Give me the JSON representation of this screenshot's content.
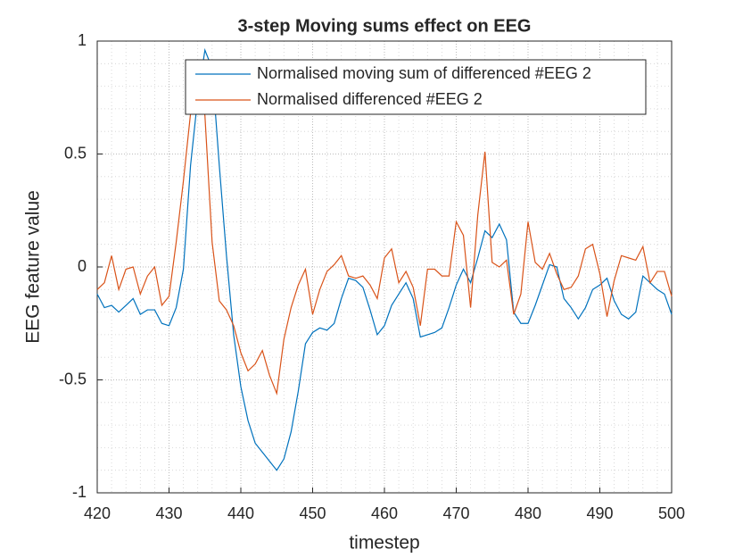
{
  "chart_data": {
    "type": "line",
    "title": "3-step Moving sums effect on EEG",
    "xlabel": "timestep",
    "ylabel": "EEG feature value",
    "x": [
      420,
      421,
      422,
      423,
      424,
      425,
      426,
      427,
      428,
      429,
      430,
      431,
      432,
      433,
      434,
      435,
      436,
      437,
      438,
      439,
      440,
      441,
      442,
      443,
      444,
      445,
      446,
      447,
      448,
      449,
      450,
      451,
      452,
      453,
      454,
      455,
      456,
      457,
      458,
      459,
      460,
      461,
      462,
      463,
      464,
      465,
      466,
      467,
      468,
      469,
      470,
      471,
      472,
      473,
      474,
      475,
      476,
      477,
      478,
      479,
      480,
      481,
      482,
      483,
      484,
      485,
      486,
      487,
      488,
      489,
      490,
      491,
      492,
      493,
      494,
      495,
      496,
      497,
      498,
      499,
      500
    ],
    "series": [
      {
        "name": "Normalised moving sum of differenced #EEG 2",
        "color": "#0072BD",
        "values": [
          -0.12,
          -0.18,
          -0.17,
          -0.2,
          -0.17,
          -0.14,
          -0.21,
          -0.19,
          -0.19,
          -0.25,
          -0.26,
          -0.18,
          -0.01,
          0.45,
          0.75,
          0.96,
          0.88,
          0.45,
          0.05,
          -0.3,
          -0.53,
          -0.68,
          -0.78,
          -0.82,
          -0.86,
          -0.9,
          -0.85,
          -0.73,
          -0.55,
          -0.34,
          -0.29,
          -0.27,
          -0.28,
          -0.25,
          -0.14,
          -0.05,
          -0.06,
          -0.09,
          -0.19,
          -0.3,
          -0.26,
          -0.17,
          -0.12,
          -0.07,
          -0.14,
          -0.31,
          -0.3,
          -0.29,
          -0.27,
          -0.18,
          -0.08,
          -0.01,
          -0.07,
          0.04,
          0.16,
          0.13,
          0.19,
          0.12,
          -0.2,
          -0.25,
          -0.25,
          -0.17,
          -0.08,
          0.01,
          0.0,
          -0.14,
          -0.18,
          -0.23,
          -0.18,
          -0.1,
          -0.08,
          -0.05,
          -0.15,
          -0.21,
          -0.23,
          -0.2,
          -0.04,
          -0.07,
          -0.1,
          -0.12,
          -0.21
        ]
      },
      {
        "name": "Normalised differenced #EEG 2",
        "color": "#D95319",
        "values": [
          -0.1,
          -0.07,
          0.05,
          -0.1,
          -0.01,
          0.0,
          -0.12,
          -0.04,
          0.0,
          -0.17,
          -0.13,
          0.11,
          0.38,
          0.68,
          0.84,
          0.67,
          0.11,
          -0.15,
          -0.19,
          -0.26,
          -0.38,
          -0.46,
          -0.43,
          -0.37,
          -0.48,
          -0.56,
          -0.32,
          -0.18,
          -0.08,
          -0.01,
          -0.21,
          -0.1,
          -0.02,
          0.01,
          0.05,
          -0.04,
          -0.05,
          -0.04,
          -0.08,
          -0.14,
          0.04,
          0.08,
          -0.07,
          -0.02,
          -0.09,
          -0.26,
          -0.01,
          -0.01,
          -0.04,
          -0.04,
          0.2,
          0.14,
          -0.18,
          0.23,
          0.51,
          0.02,
          0.0,
          0.03,
          -0.21,
          -0.12,
          0.2,
          0.02,
          -0.01,
          0.06,
          -0.03,
          -0.1,
          -0.09,
          -0.04,
          0.08,
          0.1,
          -0.03,
          -0.22,
          -0.06,
          0.05,
          0.04,
          0.03,
          0.09,
          -0.07,
          -0.02,
          -0.02,
          -0.13
        ]
      }
    ],
    "xlim": [
      420,
      500
    ],
    "xticks": [
      420,
      430,
      440,
      450,
      460,
      470,
      480,
      490,
      500
    ],
    "ylim": [
      -1,
      1
    ],
    "yticks": [
      -1,
      -0.5,
      0,
      0.5,
      1
    ],
    "grid": true,
    "minor_grid": true,
    "legend": "northeast"
  }
}
